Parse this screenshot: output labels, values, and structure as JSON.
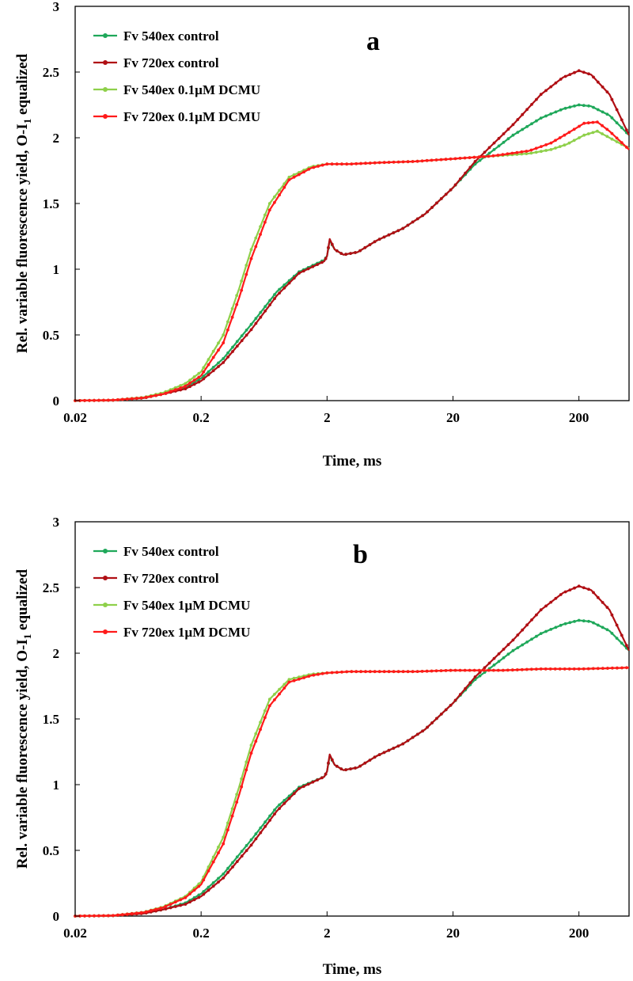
{
  "chart_data": [
    {
      "type": "line",
      "panel": "a",
      "xscale": "log",
      "xlabel": "Time, ms",
      "ylabel": "Rel. variable fluorescence yield, O-I",
      "ylabel_sub": "1",
      "ylabel_tail": " equalized",
      "xlim": [
        0.02,
        500
      ],
      "ylim": [
        0,
        3
      ],
      "xticks": [
        0.02,
        0.2,
        2,
        20,
        200
      ],
      "xtick_labels": [
        "0.02",
        "0.2",
        "2",
        "20",
        "200"
      ],
      "yticks": [
        0,
        0.5,
        1,
        1.5,
        2,
        2.5,
        3
      ],
      "ytick_labels": [
        "0",
        "0.5",
        "1",
        "1.5",
        "2",
        "2.5",
        "3"
      ],
      "legend_position": "top-left",
      "series": [
        {
          "name": "Fv 540ex control",
          "color": "#1fa85a",
          "x": [
            0.02,
            0.04,
            0.07,
            0.1,
            0.15,
            0.2,
            0.3,
            0.5,
            0.8,
            1.2,
            1.9,
            2.0,
            2.1,
            2.3,
            2.7,
            3.5,
            5,
            8,
            12,
            20,
            30,
            60,
            100,
            150,
            200,
            250,
            350,
            500
          ],
          "y": [
            0,
            0.003,
            0.02,
            0.05,
            0.1,
            0.17,
            0.32,
            0.58,
            0.83,
            0.98,
            1.07,
            1.1,
            1.22,
            1.15,
            1.11,
            1.13,
            1.22,
            1.31,
            1.42,
            1.62,
            1.8,
            2.02,
            2.15,
            2.22,
            2.25,
            2.24,
            2.17,
            2.02
          ]
        },
        {
          "name": "Fv 720ex control",
          "color": "#b00f14",
          "x": [
            0.02,
            0.04,
            0.07,
            0.1,
            0.15,
            0.2,
            0.3,
            0.5,
            0.8,
            1.2,
            1.9,
            2.0,
            2.1,
            2.3,
            2.7,
            3.5,
            5,
            8,
            12,
            20,
            30,
            60,
            100,
            150,
            200,
            250,
            350,
            500
          ],
          "y": [
            0,
            0.003,
            0.02,
            0.05,
            0.09,
            0.15,
            0.29,
            0.54,
            0.8,
            0.97,
            1.06,
            1.1,
            1.23,
            1.15,
            1.11,
            1.13,
            1.22,
            1.31,
            1.42,
            1.62,
            1.82,
            2.1,
            2.33,
            2.46,
            2.51,
            2.48,
            2.33,
            2.02
          ]
        },
        {
          "name": "Fv 540ex 0.1µM DCMU",
          "color": "#8ed04a",
          "x": [
            0.02,
            0.04,
            0.07,
            0.1,
            0.15,
            0.2,
            0.3,
            0.4,
            0.5,
            0.7,
            1.0,
            1.5,
            2.0,
            3,
            5,
            10,
            20,
            40,
            80,
            120,
            160,
            220,
            280,
            350,
            500
          ],
          "y": [
            0,
            0.004,
            0.025,
            0.06,
            0.13,
            0.22,
            0.5,
            0.85,
            1.15,
            1.5,
            1.7,
            1.78,
            1.8,
            1.8,
            1.81,
            1.82,
            1.84,
            1.86,
            1.88,
            1.91,
            1.95,
            2.02,
            2.05,
            2.0,
            1.92
          ]
        },
        {
          "name": "Fv 720ex 0.1µM DCMU",
          "color": "#ff1a1a",
          "x": [
            0.02,
            0.04,
            0.07,
            0.1,
            0.15,
            0.2,
            0.3,
            0.4,
            0.5,
            0.7,
            1.0,
            1.5,
            2.0,
            3,
            5,
            10,
            20,
            40,
            80,
            120,
            160,
            220,
            280,
            350,
            500
          ],
          "y": [
            0,
            0.004,
            0.022,
            0.05,
            0.11,
            0.19,
            0.44,
            0.78,
            1.08,
            1.45,
            1.68,
            1.77,
            1.8,
            1.8,
            1.81,
            1.82,
            1.84,
            1.86,
            1.9,
            1.96,
            2.03,
            2.11,
            2.12,
            2.05,
            1.91
          ]
        }
      ]
    },
    {
      "type": "line",
      "panel": "b",
      "xscale": "log",
      "xlabel": "Time, ms",
      "ylabel": "Rel. variable fluorescence yield, O-I",
      "ylabel_sub": "1",
      "ylabel_tail": " equalized",
      "xlim": [
        0.02,
        500
      ],
      "ylim": [
        0,
        3
      ],
      "xticks": [
        0.02,
        0.2,
        2,
        20,
        200
      ],
      "xtick_labels": [
        "0.02",
        "0.2",
        "2",
        "20",
        "200"
      ],
      "yticks": [
        0,
        0.5,
        1,
        1.5,
        2,
        2.5,
        3
      ],
      "ytick_labels": [
        "0",
        "0.5",
        "1",
        "1.5",
        "2",
        "2.5",
        "3"
      ],
      "legend_position": "top-left",
      "series": [
        {
          "name": "Fv 540ex control",
          "color": "#1fa85a",
          "x": [
            0.02,
            0.04,
            0.07,
            0.1,
            0.15,
            0.2,
            0.3,
            0.5,
            0.8,
            1.2,
            1.9,
            2.0,
            2.1,
            2.3,
            2.7,
            3.5,
            5,
            8,
            12,
            20,
            30,
            60,
            100,
            150,
            200,
            250,
            350,
            500
          ],
          "y": [
            0,
            0.003,
            0.02,
            0.05,
            0.1,
            0.17,
            0.32,
            0.58,
            0.83,
            0.98,
            1.06,
            1.1,
            1.22,
            1.15,
            1.11,
            1.13,
            1.22,
            1.31,
            1.42,
            1.62,
            1.8,
            2.02,
            2.15,
            2.22,
            2.25,
            2.24,
            2.17,
            2.02
          ]
        },
        {
          "name": "Fv 720ex control",
          "color": "#b00f14",
          "x": [
            0.02,
            0.04,
            0.07,
            0.1,
            0.15,
            0.2,
            0.3,
            0.5,
            0.8,
            1.2,
            1.9,
            2.0,
            2.1,
            2.3,
            2.7,
            3.5,
            5,
            8,
            12,
            20,
            30,
            60,
            100,
            150,
            200,
            250,
            350,
            500
          ],
          "y": [
            0,
            0.003,
            0.02,
            0.05,
            0.09,
            0.15,
            0.29,
            0.54,
            0.8,
            0.97,
            1.06,
            1.1,
            1.23,
            1.15,
            1.11,
            1.13,
            1.22,
            1.31,
            1.42,
            1.62,
            1.82,
            2.1,
            2.33,
            2.46,
            2.51,
            2.48,
            2.33,
            2.02
          ]
        },
        {
          "name": "Fv 540ex 1µM DCMU",
          "color": "#8ed04a",
          "x": [
            0.02,
            0.04,
            0.07,
            0.1,
            0.15,
            0.2,
            0.3,
            0.4,
            0.5,
            0.7,
            1.0,
            1.5,
            2.0,
            3,
            5,
            10,
            20,
            50,
            100,
            200,
            500
          ],
          "y": [
            0,
            0.004,
            0.03,
            0.07,
            0.15,
            0.26,
            0.6,
            0.98,
            1.3,
            1.65,
            1.8,
            1.84,
            1.85,
            1.86,
            1.86,
            1.86,
            1.87,
            1.87,
            1.88,
            1.88,
            1.89
          ]
        },
        {
          "name": "Fv 720ex 1µM DCMU",
          "color": "#ff1a1a",
          "x": [
            0.02,
            0.04,
            0.07,
            0.1,
            0.15,
            0.2,
            0.3,
            0.4,
            0.5,
            0.7,
            1.0,
            1.5,
            2.0,
            3,
            5,
            10,
            20,
            50,
            100,
            200,
            500
          ],
          "y": [
            0,
            0.004,
            0.028,
            0.065,
            0.14,
            0.24,
            0.55,
            0.92,
            1.24,
            1.6,
            1.78,
            1.83,
            1.85,
            1.86,
            1.86,
            1.86,
            1.87,
            1.87,
            1.88,
            1.88,
            1.89
          ]
        }
      ]
    }
  ]
}
